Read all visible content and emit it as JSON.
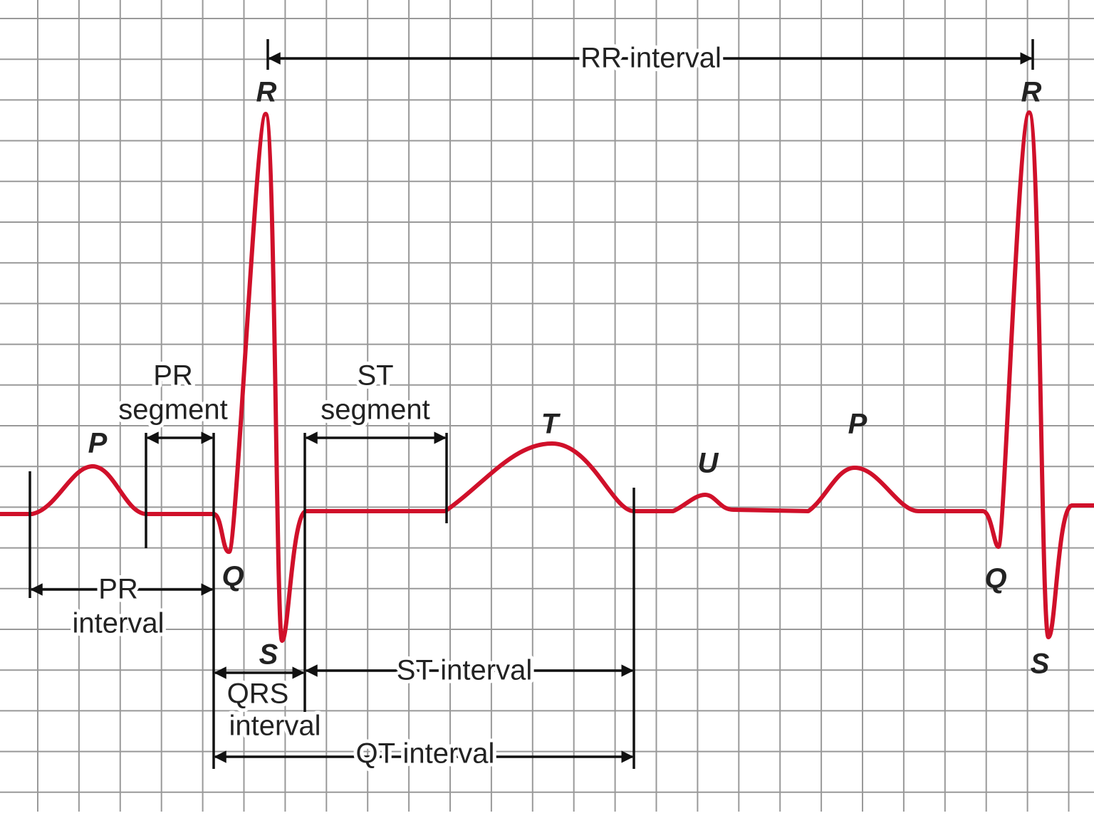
{
  "wave_labels": [
    "P",
    "Q",
    "R",
    "S",
    "T",
    "U",
    "P",
    "Q",
    "R",
    "S"
  ],
  "intervals": {
    "rr_interval": "RR interval",
    "pr_segment": [
      "PR",
      "segment"
    ],
    "st_segment": [
      "ST",
      "segment"
    ],
    "pr_interval": [
      "PR",
      "interval"
    ],
    "qrs_interval": [
      "QRS",
      "interval"
    ],
    "st_interval": "ST interval",
    "qt_interval": "QT interval"
  }
}
